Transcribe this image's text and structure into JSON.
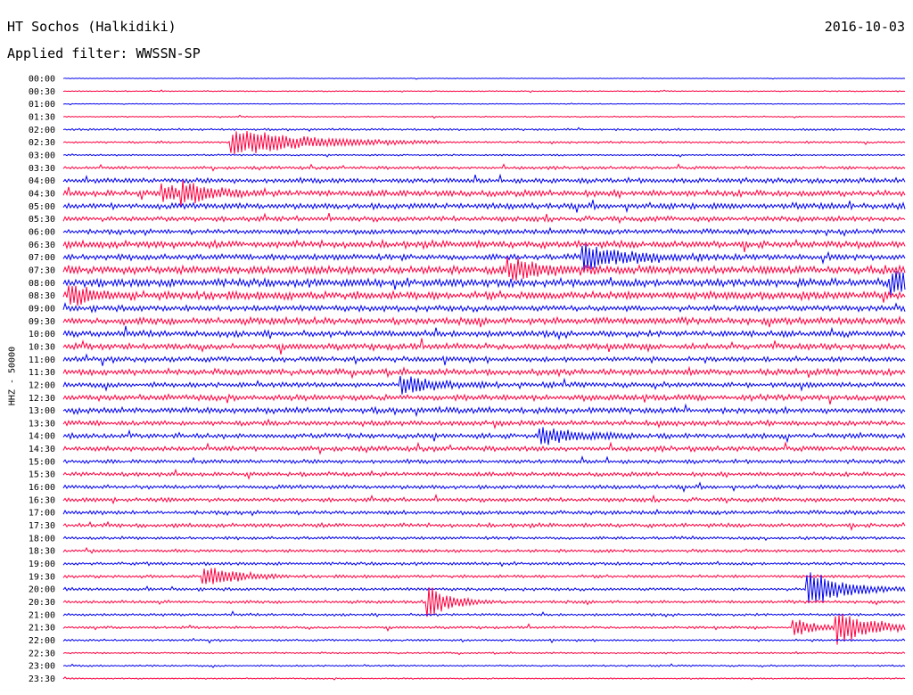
{
  "header": {
    "station": "HT Sochos (Halkidiki)",
    "filter": "Applied filter: WWSSN-SP",
    "date": "2016-10-03"
  },
  "chart_data": {
    "type": "line",
    "title": "HT Sochos (Halkidiki)",
    "subtitle": "Applied filter: WWSSN-SP",
    "ylabel": "HHZ - 50000",
    "grid": false,
    "legend": "none",
    "colors": [
      "#0000ee",
      "#ff0040"
    ],
    "rows": [
      "00:00",
      "00:30",
      "01:00",
      "01:30",
      "02:00",
      "02:30",
      "03:00",
      "03:30",
      "04:00",
      "04:30",
      "05:00",
      "05:30",
      "06:00",
      "06:30",
      "07:00",
      "07:30",
      "08:00",
      "08:30",
      "09:00",
      "09:30",
      "10:00",
      "10:30",
      "11:00",
      "11:30",
      "12:00",
      "12:30",
      "13:00",
      "13:30",
      "14:00",
      "14:30",
      "15:00",
      "15:30",
      "16:00",
      "16:30",
      "17:00",
      "17:30",
      "18:00",
      "18:30",
      "19:00",
      "19:30",
      "20:00",
      "20:30",
      "21:00",
      "21:30",
      "22:00",
      "22:30",
      "23:00",
      "23:30"
    ],
    "noise_level": [
      0.3,
      0.5,
      0.4,
      0.6,
      1.0,
      1.0,
      0.8,
      1.5,
      2.5,
      3.0,
      3.0,
      2.5,
      2.5,
      3.5,
      3.0,
      4.0,
      4.0,
      4.0,
      3.0,
      3.5,
      3.0,
      3.0,
      2.5,
      3.0,
      2.5,
      3.0,
      3.0,
      2.5,
      2.5,
      2.5,
      2.0,
      2.0,
      2.0,
      2.0,
      2.0,
      2.0,
      1.5,
      1.5,
      1.5,
      1.5,
      1.5,
      1.5,
      1.2,
      1.2,
      1.0,
      0.8,
      0.8,
      0.7
    ],
    "events": [
      {
        "row": 5,
        "minute": 6.0,
        "amp": 16,
        "dur": 2.5
      },
      {
        "row": 9,
        "minute": 3.5,
        "amp": 10,
        "dur": 1.0
      },
      {
        "row": 9,
        "minute": 4.2,
        "amp": 8,
        "dur": 1.0
      },
      {
        "row": 14,
        "minute": 18.5,
        "amp": 14,
        "dur": 1.5
      },
      {
        "row": 15,
        "minute": 15.8,
        "amp": 12,
        "dur": 1.2
      },
      {
        "row": 16,
        "minute": 29.5,
        "amp": 14,
        "dur": 1.0
      },
      {
        "row": 17,
        "minute": 0.2,
        "amp": 12,
        "dur": 0.8
      },
      {
        "row": 24,
        "minute": 12.0,
        "amp": 11,
        "dur": 1.2
      },
      {
        "row": 28,
        "minute": 17.0,
        "amp": 10,
        "dur": 1.2
      },
      {
        "row": 39,
        "minute": 5.0,
        "amp": 14,
        "dur": 1.0
      },
      {
        "row": 41,
        "minute": 13.0,
        "amp": 20,
        "dur": 0.8
      },
      {
        "row": 40,
        "minute": 26.5,
        "amp": 22,
        "dur": 1.2
      },
      {
        "row": 43,
        "minute": 27.5,
        "amp": 22,
        "dur": 1.2
      },
      {
        "row": 43,
        "minute": 26.0,
        "amp": 10,
        "dur": 0.8
      }
    ]
  }
}
